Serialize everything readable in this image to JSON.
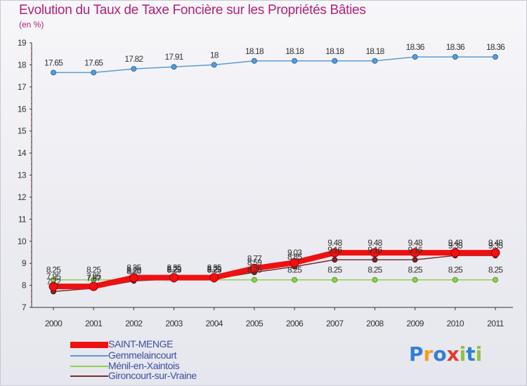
{
  "title": "Evolution du Taux de Taxe Foncière sur les Propriétés Bâties",
  "unit_label": "(en %)",
  "logo": {
    "letters": [
      "P",
      "r",
      "o",
      "x",
      "i",
      "t",
      "i"
    ],
    "colors": [
      "#2f7fd6",
      "#f39c1f",
      "#2f7fd6",
      "#e23a2b",
      "#8bc53f",
      "#2f7fd6",
      "#8bc53f"
    ]
  },
  "chart_data": {
    "type": "line",
    "x": [
      "2000",
      "2001",
      "2002",
      "2003",
      "2004",
      "2005",
      "2006",
      "2007",
      "2008",
      "2009",
      "2010",
      "2011"
    ],
    "ylim": [
      7,
      19
    ],
    "yticks": [
      "7",
      "8",
      "9",
      "10",
      "11",
      "12",
      "13",
      "14",
      "15",
      "16",
      "17",
      "18",
      "19"
    ],
    "grid": false,
    "legend_position": "bottom-left",
    "series": [
      {
        "name": "Gemmelaincourt",
        "color": "#5b9bd5",
        "values": [
          17.65,
          17.65,
          17.82,
          17.91,
          18,
          18.18,
          18.18,
          18.18,
          18.18,
          18.36,
          18.36,
          18.36
        ],
        "labels": [
          "17.65",
          "17.65",
          "17.82",
          "17.91",
          "18",
          "18.18",
          "18.18",
          "18.18",
          "18.18",
          "18.36",
          "18.36",
          "18.36"
        ]
      },
      {
        "name": "Ménil-en-Xaintois",
        "color": "#8fd14f",
        "values": [
          8.25,
          8.25,
          8.25,
          8.25,
          8.25,
          8.25,
          8.25,
          8.25,
          8.25,
          8.25,
          8.25,
          8.25
        ],
        "labels": [
          "8.25",
          "8.25",
          "8.25",
          "8.25",
          "8.25",
          "8.25",
          "8.25",
          "8.25",
          "8.25",
          "8.25",
          "8.25",
          "8.25"
        ]
      },
      {
        "name": "Gironcourt-sur-Vraine",
        "color": "#7b2c2c",
        "values": [
          7.72,
          7.87,
          8.2,
          8.29,
          8.29,
          8.59,
          8.85,
          9.16,
          9.16,
          9.16,
          9.35,
          9.35
        ],
        "labels": [
          "7.72",
          "7.87",
          "8.20",
          "8.29",
          "8.29",
          "8.59",
          "8.85",
          "9.16",
          "9.16",
          "9.16",
          "9.35",
          "9.35"
        ]
      },
      {
        "name": "SAINT-MENGE",
        "color": "#ee1111",
        "values": [
          7.95,
          7.95,
          8.35,
          8.35,
          8.35,
          8.77,
          9.03,
          9.48,
          9.48,
          9.48,
          9.48,
          9.48
        ],
        "labels": [
          "7.95",
          "7.95",
          "8.35",
          "8.35",
          "8.35",
          "8.77",
          "9.03",
          "9.48",
          "9.48",
          "9.48",
          "9.48",
          "9.48"
        ]
      }
    ],
    "legend": [
      "SAINT-MENGE",
      "Gemmelaincourt",
      "Ménil-en-Xaintois",
      "Gironcourt-sur-Vraine"
    ]
  }
}
